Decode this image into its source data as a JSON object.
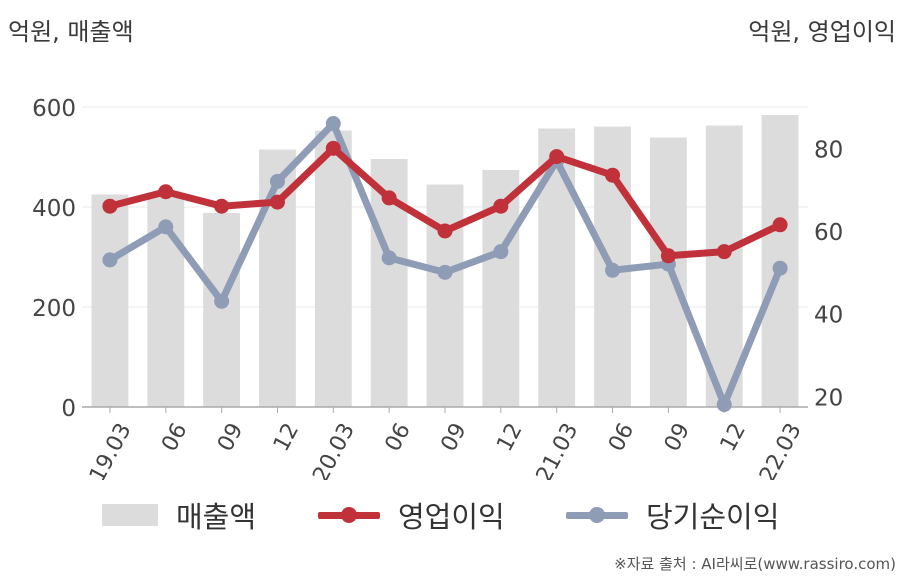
{
  "units": {
    "left": "억원, 매출액",
    "right": "억원, 영업이익"
  },
  "chart_data": {
    "type": "bar+line",
    "categories": [
      "19.03",
      "06",
      "09",
      "12",
      "20.03",
      "06",
      "09",
      "12",
      "21.03",
      "06",
      "09",
      "12",
      "22.03"
    ],
    "bars": {
      "name": "매출액",
      "axis": "left",
      "color": "#dcdcdc",
      "values": [
        425,
        422,
        388,
        515,
        553,
        496,
        445,
        474,
        557,
        561,
        539,
        563,
        584
      ]
    },
    "lines": [
      {
        "name": "영업이익",
        "axis": "right",
        "color": "#c0313a",
        "values": [
          66,
          69.5,
          66,
          67,
          80,
          68,
          60,
          66,
          78,
          73.5,
          54,
          55,
          61.5
        ]
      },
      {
        "name": "당기순이익",
        "axis": "right",
        "color": "#8f9cb6",
        "values": [
          53,
          61,
          43,
          72,
          86,
          53.5,
          50,
          55,
          77,
          50.5,
          52,
          18,
          51
        ]
      }
    ],
    "left_axis": {
      "ylim": [
        0,
        600
      ],
      "ticks": [
        0,
        200,
        400,
        600
      ]
    },
    "right_axis": {
      "ylim": [
        15,
        90
      ],
      "ticks": [
        20,
        40,
        60,
        80
      ]
    },
    "grid": true,
    "legend_position": "bottom"
  },
  "legend": [
    {
      "label": "매출액",
      "swatch": "bar",
      "color": "#dcdcdc"
    },
    {
      "label": "영업이익",
      "swatch": "line",
      "color": "#c0313a"
    },
    {
      "label": "당기순이익",
      "swatch": "line",
      "color": "#8f9cb6"
    }
  ],
  "source": "※자료 출처 : AI라씨로(www.rassiro.com)"
}
